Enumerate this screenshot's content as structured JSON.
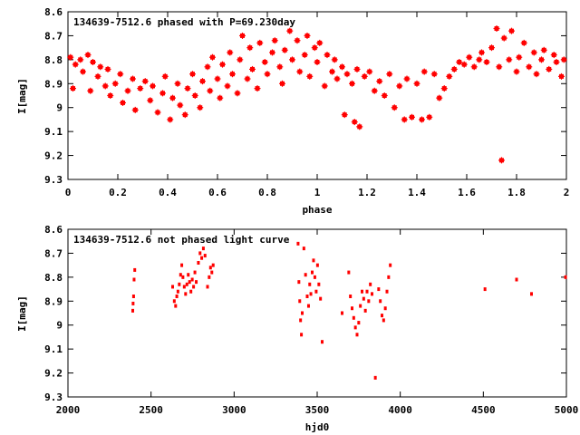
{
  "chart_data": [
    {
      "type": "scatter",
      "title": "134639-7512.6 phased with P=69.230day",
      "xlabel": "phase",
      "ylabel": "I[mag]",
      "xlim": [
        0,
        2
      ],
      "ylim": [
        9.3,
        8.6
      ],
      "y_inverted": true,
      "grid": false,
      "x_ticks": [
        "0",
        "0.2",
        "0.4",
        "0.6",
        "0.8",
        "1",
        "1.2",
        "1.4",
        "1.6",
        "1.8",
        "2"
      ],
      "y_ticks": [
        "8.6",
        "8.7",
        "8.8",
        "8.9",
        "9",
        "9.1",
        "9.2",
        "9.3"
      ],
      "marker_color": "#ff0000",
      "marker": "star",
      "series": [
        {
          "points": [
            [
              0.01,
              8.79
            ],
            [
              0.02,
              8.92
            ],
            [
              0.03,
              8.82
            ],
            [
              0.05,
              8.8
            ],
            [
              0.06,
              8.85
            ],
            [
              0.08,
              8.78
            ],
            [
              0.09,
              8.93
            ],
            [
              0.1,
              8.81
            ],
            [
              0.12,
              8.87
            ],
            [
              0.13,
              8.83
            ],
            [
              0.15,
              8.91
            ],
            [
              0.16,
              8.84
            ],
            [
              0.17,
              8.95
            ],
            [
              0.19,
              8.9
            ],
            [
              0.21,
              8.86
            ],
            [
              0.22,
              8.98
            ],
            [
              0.24,
              8.93
            ],
            [
              0.26,
              8.88
            ],
            [
              0.27,
              9.01
            ],
            [
              0.29,
              8.92
            ],
            [
              0.31,
              8.89
            ],
            [
              0.33,
              8.97
            ],
            [
              0.34,
              8.91
            ],
            [
              0.36,
              9.02
            ],
            [
              0.38,
              8.94
            ],
            [
              0.39,
              8.87
            ],
            [
              0.41,
              9.05
            ],
            [
              0.42,
              8.96
            ],
            [
              0.44,
              8.9
            ],
            [
              0.45,
              8.99
            ],
            [
              0.47,
              9.03
            ],
            [
              0.48,
              8.92
            ],
            [
              0.5,
              8.86
            ],
            [
              0.51,
              8.95
            ],
            [
              0.53,
              9.0
            ],
            [
              0.54,
              8.89
            ],
            [
              0.56,
              8.83
            ],
            [
              0.57,
              8.93
            ],
            [
              0.58,
              8.79
            ],
            [
              0.6,
              8.88
            ],
            [
              0.61,
              8.96
            ],
            [
              0.62,
              8.82
            ],
            [
              0.64,
              8.91
            ],
            [
              0.65,
              8.77
            ],
            [
              0.66,
              8.86
            ],
            [
              0.68,
              8.94
            ],
            [
              0.69,
              8.8
            ],
            [
              0.7,
              8.7
            ],
            [
              0.72,
              8.88
            ],
            [
              0.73,
              8.75
            ],
            [
              0.74,
              8.84
            ],
            [
              0.76,
              8.92
            ],
            [
              0.77,
              8.73
            ],
            [
              0.79,
              8.81
            ],
            [
              0.8,
              8.86
            ],
            [
              0.82,
              8.77
            ],
            [
              0.83,
              8.72
            ],
            [
              0.85,
              8.83
            ],
            [
              0.86,
              8.9
            ],
            [
              0.87,
              8.76
            ],
            [
              0.89,
              8.68
            ],
            [
              0.9,
              8.8
            ],
            [
              0.92,
              8.72
            ],
            [
              0.93,
              8.85
            ],
            [
              0.95,
              8.78
            ],
            [
              0.96,
              8.7
            ],
            [
              0.97,
              8.87
            ],
            [
              0.99,
              8.75
            ],
            [
              1.0,
              8.81
            ],
            [
              1.01,
              8.73
            ],
            [
              1.03,
              8.91
            ],
            [
              1.04,
              8.78
            ],
            [
              1.06,
              8.85
            ],
            [
              1.07,
              8.8
            ],
            [
              1.08,
              8.88
            ],
            [
              1.1,
              8.83
            ],
            [
              1.11,
              9.03
            ],
            [
              1.12,
              8.86
            ],
            [
              1.14,
              8.9
            ],
            [
              1.15,
              9.06
            ],
            [
              1.16,
              8.84
            ],
            [
              1.17,
              9.08
            ],
            [
              1.19,
              8.87
            ],
            [
              1.21,
              8.85
            ],
            [
              1.23,
              8.93
            ],
            [
              1.25,
              8.89
            ],
            [
              1.27,
              8.95
            ],
            [
              1.29,
              8.86
            ],
            [
              1.31,
              9.0
            ],
            [
              1.33,
              8.91
            ],
            [
              1.35,
              9.05
            ],
            [
              1.36,
              8.88
            ],
            [
              1.38,
              9.04
            ],
            [
              1.4,
              8.9
            ],
            [
              1.42,
              9.05
            ],
            [
              1.43,
              8.85
            ],
            [
              1.45,
              9.04
            ],
            [
              1.47,
              8.86
            ],
            [
              1.49,
              8.96
            ],
            [
              1.51,
              8.92
            ],
            [
              1.53,
              8.87
            ],
            [
              1.55,
              8.84
            ],
            [
              1.57,
              8.81
            ],
            [
              1.59,
              8.82
            ],
            [
              1.61,
              8.79
            ],
            [
              1.63,
              8.83
            ],
            [
              1.65,
              8.8
            ],
            [
              1.66,
              8.77
            ],
            [
              1.68,
              8.81
            ],
            [
              1.7,
              8.75
            ],
            [
              1.72,
              8.67
            ],
            [
              1.73,
              8.83
            ],
            [
              1.74,
              9.22
            ],
            [
              1.75,
              8.71
            ],
            [
              1.77,
              8.8
            ],
            [
              1.78,
              8.68
            ],
            [
              1.8,
              8.85
            ],
            [
              1.81,
              8.79
            ],
            [
              1.83,
              8.73
            ],
            [
              1.85,
              8.83
            ],
            [
              1.87,
              8.77
            ],
            [
              1.88,
              8.86
            ],
            [
              1.9,
              8.8
            ],
            [
              1.91,
              8.76
            ],
            [
              1.93,
              8.84
            ],
            [
              1.95,
              8.78
            ],
            [
              1.96,
              8.81
            ],
            [
              1.98,
              8.87
            ],
            [
              1.99,
              8.8
            ]
          ]
        }
      ]
    },
    {
      "type": "scatter",
      "title": "134639-7512.6 not phased light curve",
      "xlabel": "hjd0",
      "ylabel": "I[mag]",
      "xlim": [
        2000,
        5000
      ],
      "ylim": [
        9.3,
        8.6
      ],
      "y_inverted": true,
      "grid": false,
      "x_ticks": [
        "2000",
        "2500",
        "3000",
        "3500",
        "4000",
        "4500",
        "5000"
      ],
      "y_ticks": [
        "8.6",
        "8.7",
        "8.8",
        "8.9",
        "9",
        "9.1",
        "9.2",
        "9.3"
      ],
      "marker_color": "#ff0000",
      "marker": "dot",
      "series": [
        {
          "points": [
            [
              2390,
              8.94
            ],
            [
              2392,
              8.91
            ],
            [
              2395,
              8.88
            ],
            [
              2398,
              8.81
            ],
            [
              2402,
              8.77
            ],
            [
              2630,
              8.84
            ],
            [
              2640,
              8.9
            ],
            [
              2648,
              8.92
            ],
            [
              2655,
              8.88
            ],
            [
              2662,
              8.86
            ],
            [
              2670,
              8.83
            ],
            [
              2678,
              8.79
            ],
            [
              2685,
              8.75
            ],
            [
              2692,
              8.8
            ],
            [
              2700,
              8.84
            ],
            [
              2708,
              8.87
            ],
            [
              2716,
              8.83
            ],
            [
              2724,
              8.79
            ],
            [
              2732,
              8.82
            ],
            [
              2740,
              8.86
            ],
            [
              2748,
              8.81
            ],
            [
              2756,
              8.84
            ],
            [
              2764,
              8.78
            ],
            [
              2772,
              8.82
            ],
            [
              2785,
              8.74
            ],
            [
              2795,
              8.7
            ],
            [
              2805,
              8.72
            ],
            [
              2815,
              8.68
            ],
            [
              2825,
              8.71
            ],
            [
              2840,
              8.84
            ],
            [
              2850,
              8.8
            ],
            [
              2858,
              8.76
            ],
            [
              2866,
              8.78
            ],
            [
              2874,
              8.75
            ],
            [
              3385,
              8.66
            ],
            [
              3390,
              8.82
            ],
            [
              3395,
              8.9
            ],
            [
              3400,
              8.98
            ],
            [
              3405,
              9.04
            ],
            [
              3410,
              8.95
            ],
            [
              3420,
              8.68
            ],
            [
              3430,
              8.79
            ],
            [
              3440,
              8.88
            ],
            [
              3448,
              8.92
            ],
            [
              3455,
              8.83
            ],
            [
              3462,
              8.87
            ],
            [
              3470,
              8.78
            ],
            [
              3478,
              8.73
            ],
            [
              3486,
              8.8
            ],
            [
              3494,
              8.86
            ],
            [
              3502,
              8.75
            ],
            [
              3510,
              8.83
            ],
            [
              3520,
              8.89
            ],
            [
              3530,
              9.07
            ],
            [
              3650,
              8.95
            ],
            [
              3700,
              8.88
            ],
            [
              3710,
              8.93
            ],
            [
              3720,
              8.97
            ],
            [
              3730,
              9.01
            ],
            [
              3740,
              9.04
            ],
            [
              3750,
              8.99
            ],
            [
              3760,
              8.92
            ],
            [
              3770,
              8.86
            ],
            [
              3780,
              8.89
            ],
            [
              3790,
              8.94
            ],
            [
              3800,
              8.86
            ],
            [
              3810,
              8.9
            ],
            [
              3820,
              8.83
            ],
            [
              3830,
              8.87
            ],
            [
              3870,
              8.85
            ],
            [
              3880,
              8.9
            ],
            [
              3890,
              8.96
            ],
            [
              3900,
              8.98
            ],
            [
              3910,
              8.93
            ],
            [
              3920,
              8.86
            ],
            [
              3930,
              8.8
            ],
            [
              3940,
              8.75
            ],
            [
              3690,
              8.78
            ],
            [
              3850,
              9.22
            ],
            [
              4510,
              8.85
            ],
            [
              4700,
              8.81
            ],
            [
              4790,
              8.87
            ],
            [
              4995,
              8.8
            ]
          ]
        }
      ]
    }
  ]
}
